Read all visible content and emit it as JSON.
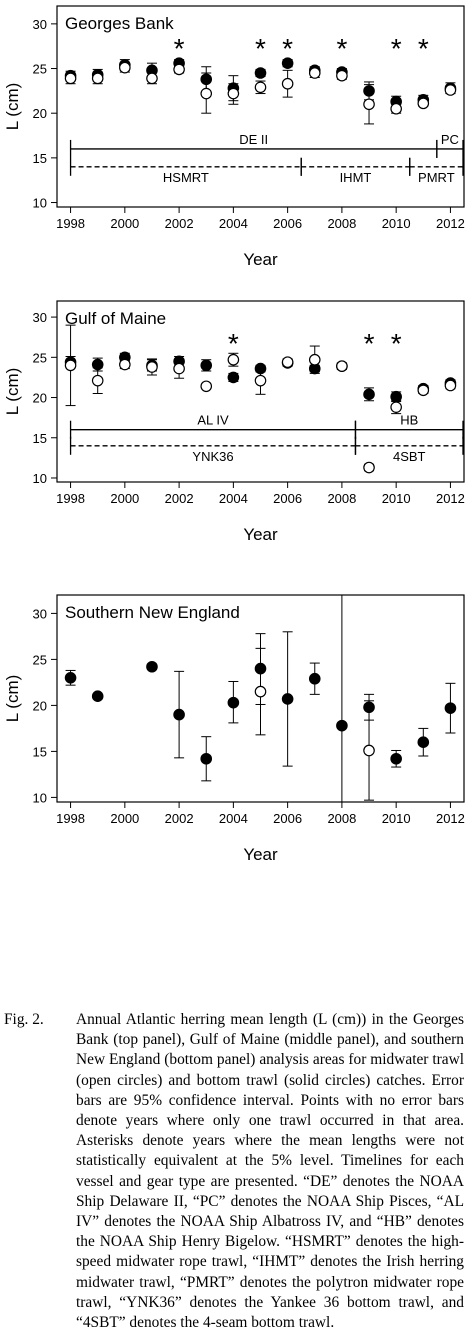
{
  "panels": [
    {
      "chart_data": {
        "type": "scatter",
        "title": "Georges Bank",
        "xlabel": "Year",
        "ylabel": "L (cm)",
        "xlim": [
          1997.5,
          2012.5
        ],
        "ylim": [
          9.5,
          32
        ],
        "xticks": [
          1998,
          2000,
          2002,
          2004,
          2006,
          2008,
          2010,
          2012
        ],
        "yticks": [
          10,
          15,
          20,
          25,
          30
        ],
        "series": [
          {
            "name": "midwater trawl",
            "marker": "open-circle",
            "points": [
              {
                "x": 1998,
                "y": 23.9,
                "lo": 23.3,
                "hi": 24.5
              },
              {
                "x": 1999,
                "y": 23.9,
                "lo": 23.3,
                "hi": 24.5
              },
              {
                "x": 2000,
                "y": 25.1,
                "lo": 24.6,
                "hi": 25.6
              },
              {
                "x": 2001,
                "y": 23.9,
                "lo": 23.3,
                "hi": 24.5
              },
              {
                "x": 2002,
                "y": 24.9,
                "lo": 24.5,
                "hi": 25.3
              },
              {
                "x": 2003,
                "y": 22.2,
                "lo": 20.0,
                "hi": 24.5
              },
              {
                "x": 2004,
                "y": 22.2,
                "lo": 21.0,
                "hi": 23.3
              },
              {
                "x": 2005,
                "y": 22.9,
                "lo": 22.2,
                "hi": 23.6
              },
              {
                "x": 2006,
                "y": 23.3,
                "lo": 21.8,
                "hi": 24.8
              },
              {
                "x": 2007,
                "y": 24.5,
                "lo": 24.0,
                "hi": 25.0
              },
              {
                "x": 2008,
                "y": 24.2,
                "lo": 23.8,
                "hi": 24.6
              },
              {
                "x": 2009,
                "y": 21.0,
                "lo": 18.8,
                "hi": 23.2
              },
              {
                "x": 2010,
                "y": 20.5,
                "lo": 20.0,
                "hi": 21.0
              },
              {
                "x": 2011,
                "y": 21.1,
                "lo": 20.8,
                "hi": 21.4
              },
              {
                "x": 2012,
                "y": 22.6,
                "lo": 22.2,
                "hi": 23.0
              }
            ]
          },
          {
            "name": "bottom trawl",
            "marker": "solid-circle",
            "points": [
              {
                "x": 1998,
                "y": 24.2,
                "lo": 23.7,
                "hi": 24.7
              },
              {
                "x": 1999,
                "y": 24.3,
                "lo": 23.7,
                "hi": 24.9
              },
              {
                "x": 2000,
                "y": 25.4,
                "lo": 24.8,
                "hi": 26.0
              },
              {
                "x": 2001,
                "y": 24.8,
                "lo": 24.0,
                "hi": 25.6
              },
              {
                "x": 2002,
                "y": 25.6,
                "lo": 25.2,
                "hi": 26.0
              },
              {
                "x": 2003,
                "y": 23.8,
                "lo": 22.4,
                "hi": 25.2
              },
              {
                "x": 2004,
                "y": 22.8,
                "lo": 21.4,
                "hi": 24.2
              },
              {
                "x": 2005,
                "y": 24.5,
                "lo": 24.1,
                "hi": 24.9
              },
              {
                "x": 2006,
                "y": 25.6,
                "lo": 25.2,
                "hi": 26.0
              },
              {
                "x": 2007,
                "y": 24.8,
                "lo": 24.4,
                "hi": 25.2
              },
              {
                "x": 2008,
                "y": 24.6,
                "lo": 24.2,
                "hi": 25.0
              },
              {
                "x": 2009,
                "y": 22.5,
                "lo": 21.5,
                "hi": 23.5
              },
              {
                "x": 2010,
                "y": 21.3,
                "lo": 20.7,
                "hi": 21.9
              },
              {
                "x": 2011,
                "y": 21.5,
                "lo": 21.0,
                "hi": 22.0
              },
              {
                "x": 2012,
                "y": 22.8,
                "lo": 22.2,
                "hi": 23.4
              }
            ]
          }
        ],
        "asterisks": [
          2002,
          2005,
          2006,
          2008,
          2010,
          2011
        ],
        "asterisk_label": "*",
        "timelines": [
          {
            "style": "solid",
            "y": 16.0,
            "segments": [
              {
                "label": "DE II",
                "x0": 1998,
                "x1": 2011.5
              },
              {
                "label": "PC",
                "x0": 2011.5,
                "x1": 2012.5
              }
            ]
          },
          {
            "style": "dashed",
            "y": 14.0,
            "segments": [
              {
                "label": "HSMRT",
                "x0": 1998,
                "x1": 2006.5
              },
              {
                "label": "IHMT",
                "x0": 2006.5,
                "x1": 2010.5
              },
              {
                "label": "PMRT",
                "x0": 2010.5,
                "x1": 2012.5
              }
            ]
          }
        ]
      }
    },
    {
      "chart_data": {
        "type": "scatter",
        "title": "Gulf of Maine",
        "xlabel": "Year",
        "ylabel": "L (cm)",
        "xlim": [
          1997.5,
          2012.5
        ],
        "ylim": [
          9.5,
          32
        ],
        "xticks": [
          1998,
          2000,
          2002,
          2004,
          2006,
          2008,
          2010,
          2012
        ],
        "yticks": [
          10,
          15,
          20,
          25,
          30
        ],
        "series": [
          {
            "name": "midwater trawl",
            "marker": "open-circle",
            "points": [
              {
                "x": 1998,
                "y": 24.0,
                "lo": 19.0,
                "hi": 29.0
              },
              {
                "x": 1999,
                "y": 22.1,
                "lo": 20.5,
                "hi": 23.7
              },
              {
                "x": 2000,
                "y": 24.1,
                "lo": 23.6,
                "hi": 24.6
              },
              {
                "x": 2001,
                "y": 23.8,
                "lo": 22.8,
                "hi": 24.8
              },
              {
                "x": 2002,
                "y": 23.6,
                "lo": 22.4,
                "hi": 24.8
              },
              {
                "x": 2003,
                "y": 21.4
              },
              {
                "x": 2004,
                "y": 24.7,
                "lo": 23.9,
                "hi": 25.5
              },
              {
                "x": 2005,
                "y": 22.1,
                "lo": 20.4,
                "hi": 23.8
              },
              {
                "x": 2006,
                "y": 24.4,
                "lo": 24.0,
                "hi": 24.8
              },
              {
                "x": 2007,
                "y": 24.7,
                "lo": 23.0,
                "hi": 26.4
              },
              {
                "x": 2008,
                "y": 23.9,
                "lo": 23.5,
                "hi": 24.3
              },
              {
                "x": 2009,
                "y": 11.3,
                "lo": 10.9,
                "hi": 11.7
              },
              {
                "x": 2010,
                "y": 18.8,
                "lo": 18.0,
                "hi": 19.6
              },
              {
                "x": 2011,
                "y": 20.9,
                "lo": 20.5,
                "hi": 21.3
              },
              {
                "x": 2012,
                "y": 21.5,
                "lo": 21.1,
                "hi": 21.9
              }
            ]
          },
          {
            "name": "bottom trawl",
            "marker": "solid-circle",
            "points": [
              {
                "x": 1998,
                "y": 24.4,
                "lo": 23.7,
                "hi": 25.1
              },
              {
                "x": 1999,
                "y": 24.1,
                "lo": 23.3,
                "hi": 24.9
              },
              {
                "x": 2000,
                "y": 25.0,
                "lo": 24.5,
                "hi": 25.5
              },
              {
                "x": 2001,
                "y": 24.0,
                "lo": 23.3,
                "hi": 24.7
              },
              {
                "x": 2002,
                "y": 24.5,
                "lo": 23.9,
                "hi": 25.1
              },
              {
                "x": 2003,
                "y": 24.0,
                "lo": 23.3,
                "hi": 24.7
              },
              {
                "x": 2004,
                "y": 22.5,
                "lo": 22.0,
                "hi": 23.0
              },
              {
                "x": 2005,
                "y": 23.6,
                "lo": 23.2,
                "hi": 24.0
              },
              {
                "x": 2006,
                "y": 24.3,
                "lo": 23.9,
                "hi": 24.7
              },
              {
                "x": 2007,
                "y": 23.6,
                "lo": 23.2,
                "hi": 24.0
              },
              {
                "x": 2008,
                "y": 23.9,
                "lo": 23.5,
                "hi": 24.3
              },
              {
                "x": 2009,
                "y": 20.4,
                "lo": 19.6,
                "hi": 21.2
              },
              {
                "x": 2010,
                "y": 20.1,
                "lo": 19.5,
                "hi": 20.7
              },
              {
                "x": 2011,
                "y": 21.1,
                "lo": 20.7,
                "hi": 21.5
              },
              {
                "x": 2012,
                "y": 21.8,
                "lo": 21.4,
                "hi": 22.2
              }
            ]
          }
        ],
        "asterisks": [
          2004,
          2009,
          2010
        ],
        "asterisk_label": "*",
        "timelines": [
          {
            "style": "solid",
            "y": 16.0,
            "segments": [
              {
                "label": "AL IV",
                "x0": 1998,
                "x1": 2008.5
              },
              {
                "label": "HB",
                "x0": 2008.5,
                "x1": 2012.5
              }
            ]
          },
          {
            "style": "dashed",
            "y": 14.0,
            "segments": [
              {
                "label": "YNK36",
                "x0": 1998,
                "x1": 2008.5
              },
              {
                "label": "4SBT",
                "x0": 2008.5,
                "x1": 2012.5
              }
            ]
          }
        ]
      }
    },
    {
      "chart_data": {
        "type": "scatter",
        "title": "Southern New England",
        "xlabel": "Year",
        "ylabel": "L (cm)",
        "xlim": [
          1997.5,
          2012.5
        ],
        "ylim": [
          9.5,
          32
        ],
        "xticks": [
          1998,
          2000,
          2002,
          2004,
          2006,
          2008,
          2010,
          2012
        ],
        "yticks": [
          10,
          15,
          20,
          25,
          30
        ],
        "series": [
          {
            "name": "midwater trawl",
            "marker": "open-circle",
            "points": [
              {
                "x": 2005,
                "y": 21.5,
                "lo": 16.8,
                "hi": 26.2
              },
              {
                "x": 2009,
                "y": 15.1,
                "lo": 9.7,
                "hi": 20.5
              }
            ]
          },
          {
            "name": "bottom trawl",
            "marker": "solid-circle",
            "points": [
              {
                "x": 1998,
                "y": 23.0,
                "lo": 22.2,
                "hi": 23.8
              },
              {
                "x": 1999,
                "y": 21.0
              },
              {
                "x": 2001,
                "y": 24.2,
                "lo": 23.9,
                "hi": 24.5
              },
              {
                "x": 2002,
                "y": 19.0,
                "lo": 14.3,
                "hi": 23.7
              },
              {
                "x": 2003,
                "y": 14.2,
                "lo": 11.8,
                "hi": 16.6
              },
              {
                "x": 2004,
                "y": 20.3,
                "lo": 18.1,
                "hi": 22.6
              },
              {
                "x": 2005,
                "y": 24.0,
                "lo": 20.1,
                "hi": 27.8
              },
              {
                "x": 2006,
                "y": 20.7,
                "lo": 13.4,
                "hi": 28.0
              },
              {
                "x": 2007,
                "y": 22.9,
                "lo": 21.2,
                "hi": 24.6
              },
              {
                "x": 2008,
                "y": 17.8,
                "lo": -10,
                "hi": 60
              },
              {
                "x": 2009,
                "y": 19.8,
                "lo": 18.4,
                "hi": 21.2
              },
              {
                "x": 2010,
                "y": 14.2,
                "lo": 13.3,
                "hi": 15.1
              },
              {
                "x": 2011,
                "y": 16.0,
                "lo": 14.5,
                "hi": 17.5
              },
              {
                "x": 2012,
                "y": 19.7,
                "lo": 17.0,
                "hi": 22.4
              }
            ]
          }
        ],
        "asterisks": [],
        "timelines": []
      }
    }
  ],
  "caption": {
    "label": "Fig. 2.",
    "text": "Annual Atlantic herring mean length (L (cm)) in the Georges Bank (top panel), Gulf of Maine (middle panel), and southern New England (bottom panel) analysis areas for midwater trawl (open circles) and bottom trawl (solid circles) catches. Error bars are 95% confidence interval. Points with no error bars denote years where only one trawl occurred in that area. Asterisks denote years where the mean lengths were not statistically equivalent at the 5% level. Timelines for each vessel and gear type are presented. “DE” denotes the NOAA Ship Delaware II, “PC” denotes the NOAA Ship Pisces, “AL IV” denotes the NOAA Ship Albatross IV, and “HB” denotes the NOAA Ship Henry Bigelow. “HSMRT” denotes the high-speed midwater rope trawl, “IHMT” denotes the Irish herring midwater trawl, “PMRT” denotes the polytron midwater rope trawl, “YNK36” denotes the Yankee 36 bottom trawl, and “4SBT” denotes the 4-seam bottom trawl."
  }
}
